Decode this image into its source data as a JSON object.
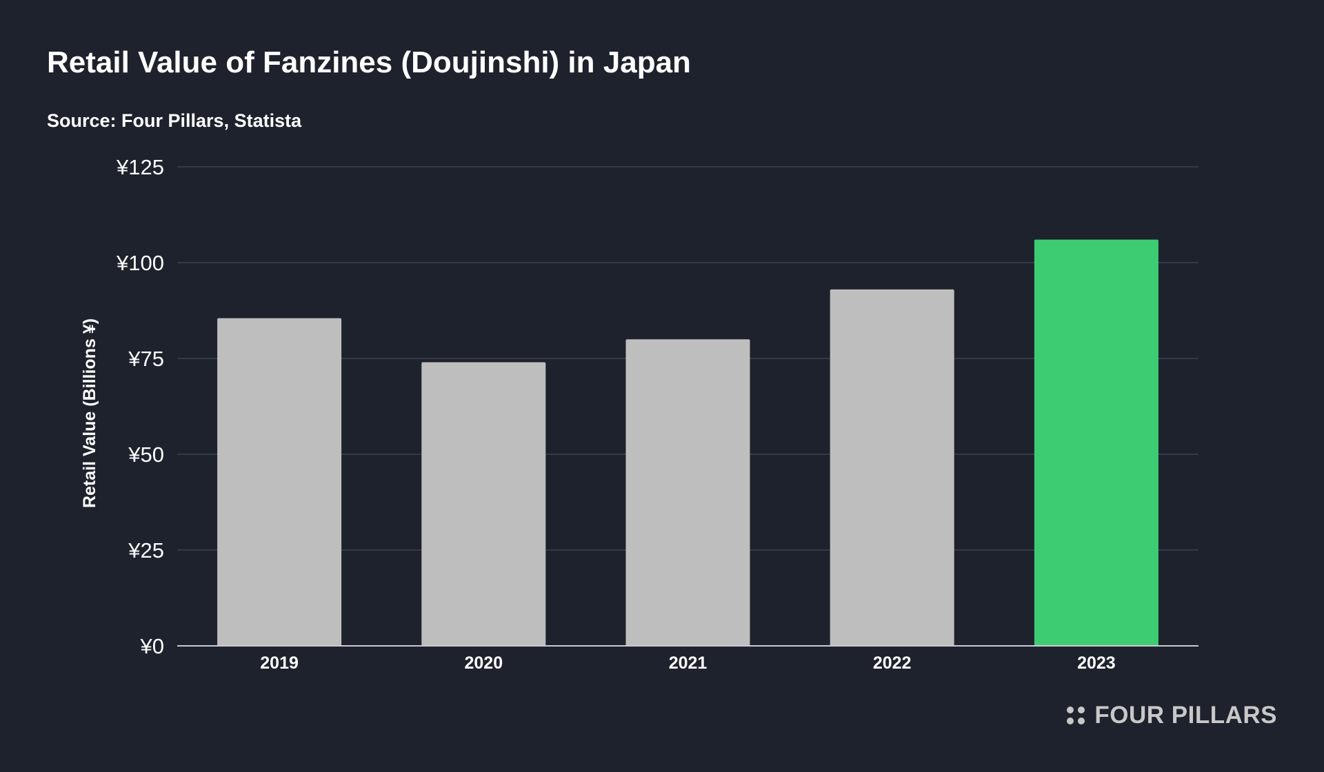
{
  "title": "Retail Value of Fanzines (Doujinshi) in Japan",
  "subtitle": "Source: Four Pillars, Statista",
  "brand": "FOUR PILLARS",
  "colors": {
    "background": "#1e222d",
    "bar_default": "#bebebe",
    "bar_highlight": "#3ecc72",
    "gridline": "#3d4350",
    "text": "#ffffff",
    "brand": "#c8c8c8"
  },
  "chart_data": {
    "type": "bar",
    "title": "Retail Value of Fanzines (Doujinshi) in Japan",
    "xlabel": "",
    "ylabel": "Retail Value (Billions ¥)",
    "categories": [
      "2019",
      "2020",
      "2021",
      "2022",
      "2023"
    ],
    "values": [
      85.5,
      74,
      80,
      93,
      106
    ],
    "highlight": "2023",
    "ylim": [
      0,
      125
    ],
    "yticks": [
      0,
      25,
      50,
      75,
      100,
      125
    ],
    "ytick_labels": [
      "¥0",
      "¥25",
      "¥50",
      "¥75",
      "¥100",
      "¥125"
    ],
    "grid": true,
    "legend": "none"
  }
}
